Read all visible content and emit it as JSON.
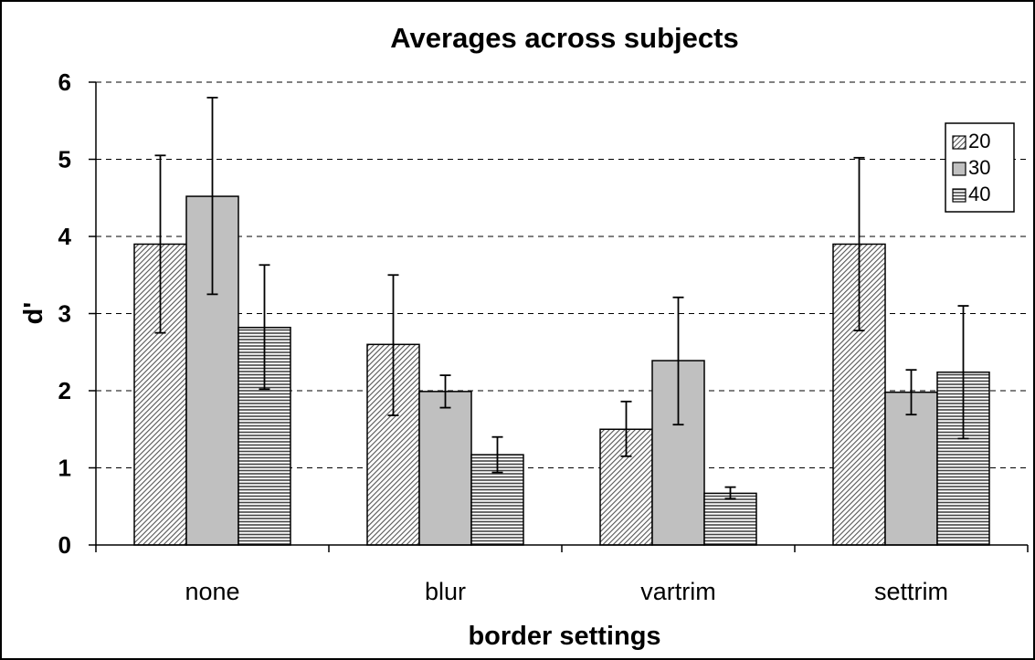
{
  "chart_data": {
    "type": "bar",
    "title": "Averages across subjects",
    "xlabel": "border settings",
    "ylabel": "d'",
    "categories": [
      "none",
      "blur",
      "vartrim",
      "settrim"
    ],
    "ylim": [
      0,
      6
    ],
    "yticks": [
      "0",
      "1",
      "2",
      "3",
      "4",
      "5",
      "6"
    ],
    "grid": "horizontal dashed",
    "legend_position": "top-right",
    "series": [
      {
        "name": "20",
        "pattern": "diagonal-hatch",
        "values": [
          3.9,
          2.6,
          1.5,
          3.9
        ],
        "err_low": [
          2.75,
          1.68,
          1.15,
          2.78
        ],
        "err_high": [
          5.05,
          3.5,
          1.86,
          5.02
        ]
      },
      {
        "name": "30",
        "pattern": "solid-gray",
        "color": "#c0c0c0",
        "values": [
          4.52,
          1.99,
          2.39,
          1.98
        ],
        "err_low": [
          3.25,
          1.78,
          1.56,
          1.69
        ],
        "err_high": [
          5.8,
          2.2,
          3.21,
          2.27
        ]
      },
      {
        "name": "40",
        "pattern": "horizontal-lines",
        "values": [
          2.82,
          1.17,
          0.67,
          2.24
        ],
        "err_low": [
          2.02,
          0.94,
          0.6,
          1.38
        ],
        "err_high": [
          3.63,
          1.4,
          0.75,
          3.1
        ]
      }
    ]
  }
}
